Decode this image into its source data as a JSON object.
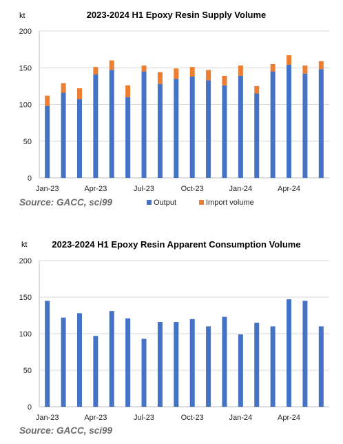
{
  "source": "Source: GACC, sci99",
  "colors": {
    "output": "#4472C4",
    "import": "#ED7D31"
  },
  "chart_data": [
    {
      "type": "bar",
      "stacked": true,
      "title": "2023-2024 H1 Epoxy Resin Supply Volume",
      "ylabel": "kt",
      "ylim": [
        0,
        200
      ],
      "yticks": [
        0,
        50,
        100,
        150,
        200
      ],
      "categories": [
        "Jan-23",
        "Feb-23",
        "Mar-23",
        "Apr-23",
        "May-23",
        "Jun-23",
        "Jul-23",
        "Aug-23",
        "Sep-23",
        "Oct-23",
        "Nov-23",
        "Dec-23",
        "Jan-24",
        "Feb-24",
        "Mar-24",
        "Apr-24",
        "May-24",
        "Jun-24"
      ],
      "xtick_labels": [
        "Jan-23",
        "Apr-23",
        "Jul-23",
        "Oct-23",
        "Jan-24",
        "Apr-24"
      ],
      "grid": true,
      "legend": "bottom",
      "series": [
        {
          "name": "Output",
          "values": [
            98,
            116,
            107,
            141,
            147,
            110,
            145,
            128,
            135,
            138,
            133,
            126,
            139,
            115,
            145,
            154,
            142,
            148
          ]
        },
        {
          "name": "Import volume",
          "values": [
            14,
            13,
            15,
            10,
            13,
            16,
            8,
            16,
            14,
            13,
            14,
            13,
            14,
            10,
            10,
            13,
            11,
            11
          ]
        }
      ]
    },
    {
      "type": "bar",
      "title": "2023-2024 H1 Epoxy Resin Apparent Consumption Volume",
      "ylabel": "kt",
      "ylim": [
        0,
        200
      ],
      "yticks": [
        0,
        50,
        100,
        150,
        200
      ],
      "categories": [
        "Jan-23",
        "Feb-23",
        "Mar-23",
        "Apr-23",
        "May-23",
        "Jun-23",
        "Jul-23",
        "Aug-23",
        "Sep-23",
        "Oct-23",
        "Nov-23",
        "Dec-23",
        "Jan-24",
        "Feb-24",
        "Mar-24",
        "Apr-24",
        "May-24",
        "Jun-24"
      ],
      "xtick_labels": [
        "Jan-23",
        "Apr-23",
        "Jul-23",
        "Oct-23",
        "Jan-24",
        "Apr-24"
      ],
      "grid": true,
      "values": [
        145,
        122,
        128,
        97,
        131,
        121,
        93,
        116,
        116,
        120,
        110,
        123,
        99,
        115,
        110,
        147,
        145,
        110
      ]
    }
  ]
}
